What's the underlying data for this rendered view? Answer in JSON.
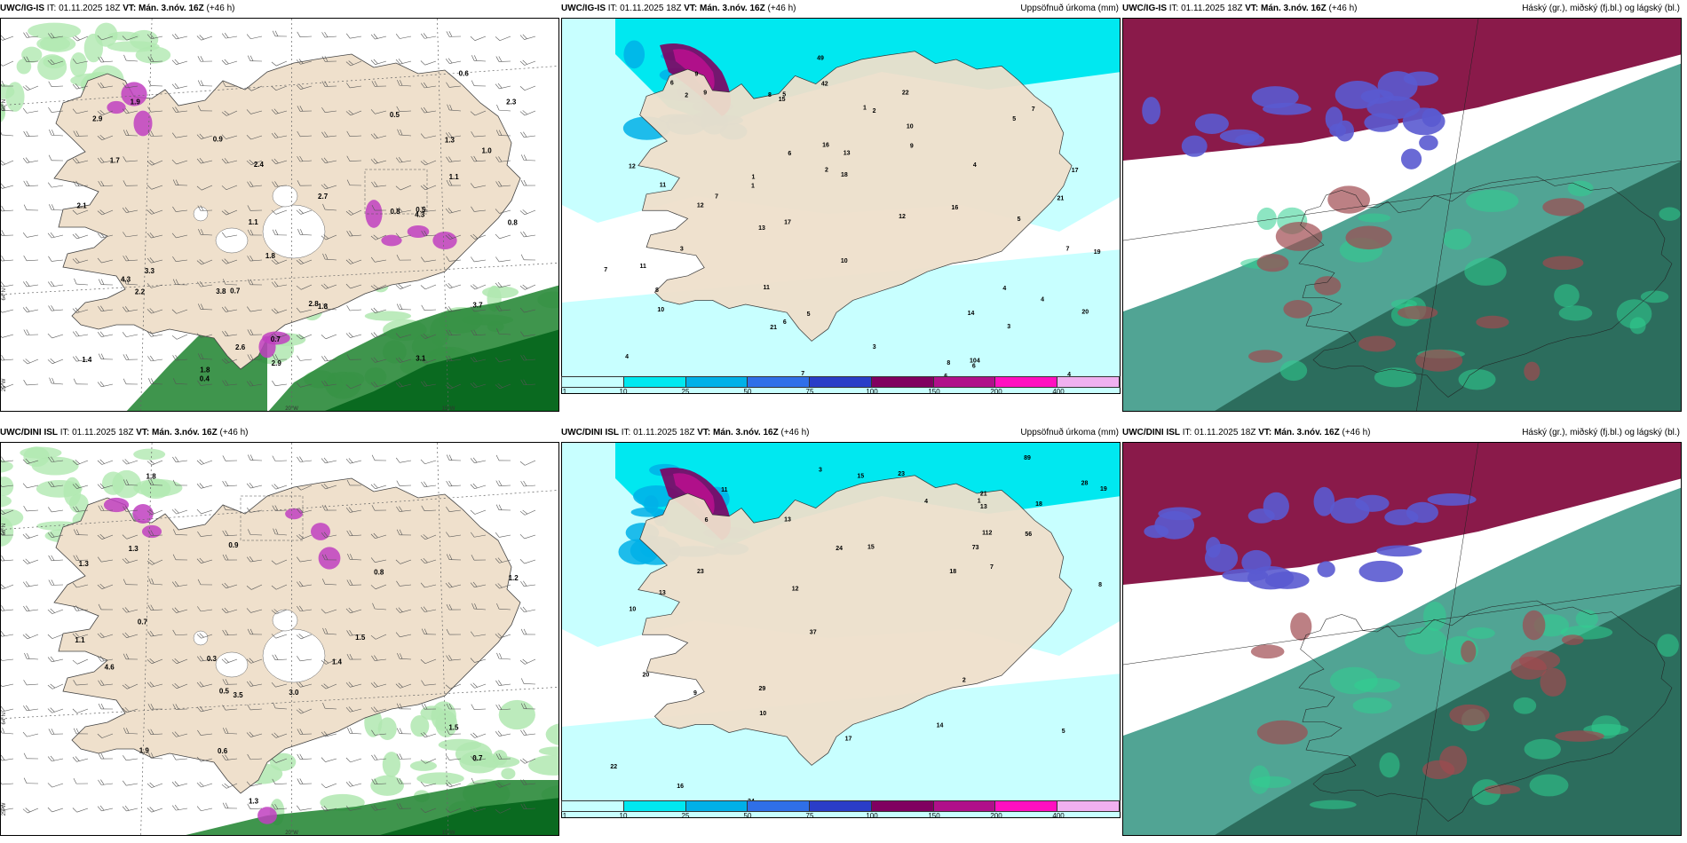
{
  "run_info": {
    "init_label": "IT: 01.11.2025 18Z",
    "valid_label": "VT: Mán. 3.nóv. 16Z",
    "lead_label": "(+46 h)"
  },
  "panels": [
    {
      "model": "UWC/IG-IS",
      "kind": "wind-precip",
      "right_title": ""
    },
    {
      "model": "UWC/IG-IS",
      "kind": "accum-precip",
      "right_title": "Uppsöfnuð úrkoma (mm)"
    },
    {
      "model": "UWC/IG-IS",
      "kind": "cloud",
      "right_title": "Háský (gr.), miðský (fj.bl.) og lágský (bl.)"
    },
    {
      "model": "UWC/DINI ISL",
      "kind": "wind-precip",
      "right_title": ""
    },
    {
      "model": "UWC/DINI ISL",
      "kind": "accum-precip",
      "right_title": "Uppsöfnuð úrkoma (mm)"
    },
    {
      "model": "UWC/DINI ISL",
      "kind": "cloud",
      "right_title": "Háský (gr.), miðský (fj.bl.) og lágský (bl.)"
    }
  ],
  "colorbar": {
    "labels": [
      "1",
      "10",
      "25",
      "50",
      "75",
      "100",
      "150",
      "200",
      "400"
    ],
    "colors": [
      "#c8ffff",
      "#00e8f0",
      "#00b0e8",
      "#2f6fe8",
      "#2a3dc8",
      "#800060",
      "#b0108a",
      "#ff10c0",
      "#f0b0f0"
    ]
  },
  "grid_labels": {
    "lat_66": "66°N",
    "lat_64": "64°N",
    "lon_25": "25°W",
    "lon_20": "20°W",
    "lon_15": "15°W"
  },
  "colors": {
    "land": "#efe0cc",
    "precip_light": "#c8ffff",
    "precip_cyan": "#00e8f0",
    "green_light": "#b0e8b0",
    "green_dark": "#0a6a20",
    "magenta": "#c040c0",
    "cloud_high": "#8a1a4a",
    "cloud_mid": "#5a5ad0",
    "cloud_low": "#2a6a5a"
  },
  "values": {
    "p1": [
      "0.8",
      "3.1",
      "0.5",
      "1.8",
      "0.7",
      "0.9",
      "1.1",
      "4.3",
      "0.7",
      "0.8",
      "2.2",
      "1.9",
      "1.8",
      "1.0",
      "1.4",
      "2.3",
      "1.8",
      "2.4",
      "2.1",
      "2.7",
      "2.8",
      "2.9",
      "3.3",
      "4.3",
      "3.8",
      "3.7",
      "2.6",
      "1.7",
      "0.6",
      "1.3",
      "1.1",
      "2.9",
      "0.4",
      "0.5"
    ],
    "p2": [
      "21",
      "13",
      "21",
      "17",
      "13",
      "16",
      "10",
      "17",
      "18",
      "14",
      "19",
      "12",
      "9",
      "42",
      "15",
      "22",
      "11",
      "8",
      "7",
      "6",
      "12",
      "9",
      "10",
      "20",
      "3",
      "5",
      "6",
      "7",
      "8",
      "4",
      "104",
      "49",
      "16",
      "11",
      "7",
      "6",
      "5",
      "4",
      "2",
      "3",
      "1",
      "4",
      "12",
      "7",
      "2",
      "5",
      "4",
      "3",
      "1",
      "11",
      "9",
      "6",
      "8",
      "7",
      "6",
      "10",
      "5",
      "4",
      "3",
      "2",
      "1"
    ],
    "p4": [
      "4.6",
      "3.5",
      "1.5",
      "3.0",
      "0.9",
      "0.6",
      "1.1",
      "0.5",
      "0.3",
      "0.7",
      "0.8",
      "1.3",
      "1.9",
      "1.5",
      "1.2",
      "1.3",
      "1.4",
      "1.8",
      "1.3",
      "0.7"
    ],
    "p5": [
      "20",
      "17",
      "15",
      "23",
      "14",
      "13",
      "18",
      "16",
      "19",
      "12",
      "29",
      "18",
      "13",
      "24",
      "56",
      "37",
      "28",
      "21",
      "23",
      "10",
      "7",
      "8",
      "9",
      "6",
      "5",
      "4",
      "3",
      "2",
      "1",
      "112",
      "73",
      "89",
      "15",
      "24",
      "11",
      "22",
      "13",
      "10"
    ]
  }
}
